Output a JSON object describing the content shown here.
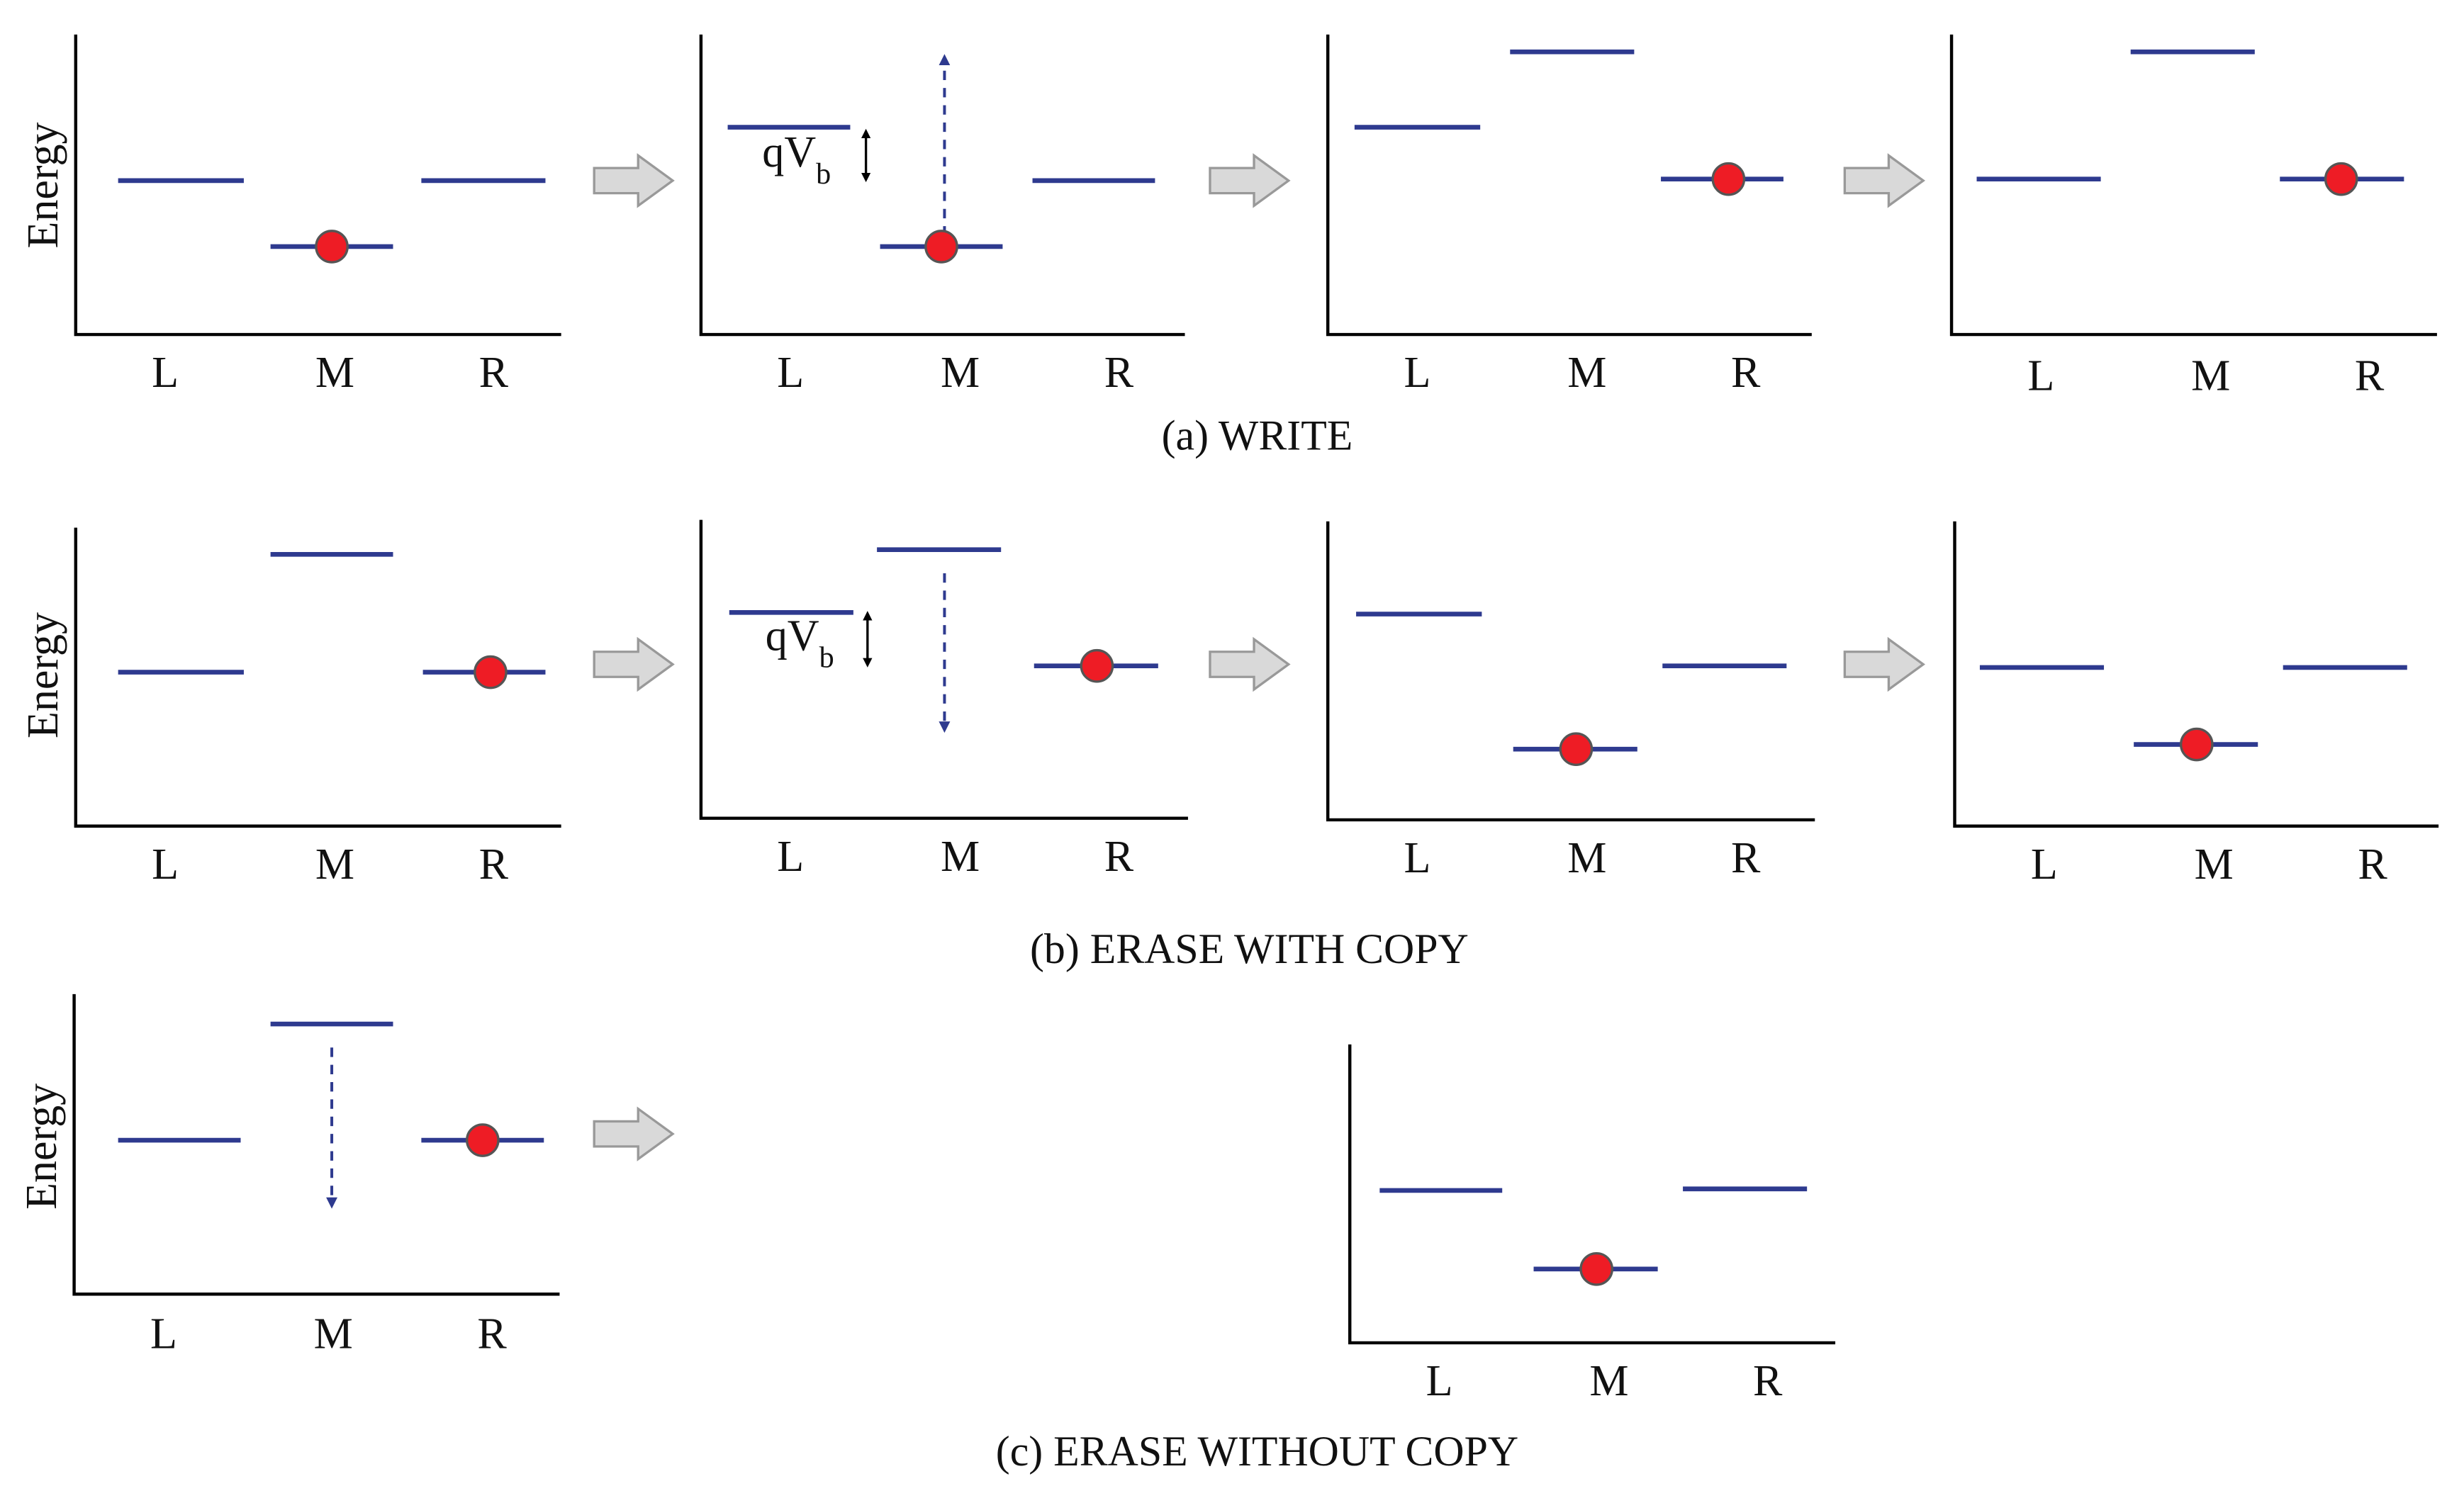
{
  "rows": [
    {
      "caption": "(a) WRITE",
      "panels": [
        {
          "y_label": "Energy",
          "x_labels": [
            "L",
            "M",
            "R"
          ]
        },
        {
          "x_labels": [
            "L",
            "M",
            "R"
          ],
          "annotation": {
            "text": "qV",
            "subscript": "b"
          }
        },
        {
          "x_labels": [
            "L",
            "M",
            "R"
          ]
        },
        {
          "x_labels": [
            "L",
            "M",
            "R"
          ]
        }
      ]
    },
    {
      "caption": "(b) ERASE WITH COPY",
      "panels": [
        {
          "y_label": "Energy",
          "x_labels": [
            "L",
            "M",
            "R"
          ]
        },
        {
          "x_labels": [
            "L",
            "M",
            "R"
          ],
          "annotation": {
            "text": "qV",
            "subscript": "b"
          }
        },
        {
          "x_labels": [
            "L",
            "M",
            "R"
          ]
        },
        {
          "x_labels": [
            "L",
            "M",
            "R"
          ]
        }
      ]
    },
    {
      "caption": "(c) ERASE WITHOUT COPY",
      "panels": [
        {
          "y_label": "Energy",
          "x_labels": [
            "L",
            "M",
            "R"
          ]
        },
        {
          "x_labels": [
            "L",
            "M",
            "R"
          ]
        }
      ]
    }
  ]
}
